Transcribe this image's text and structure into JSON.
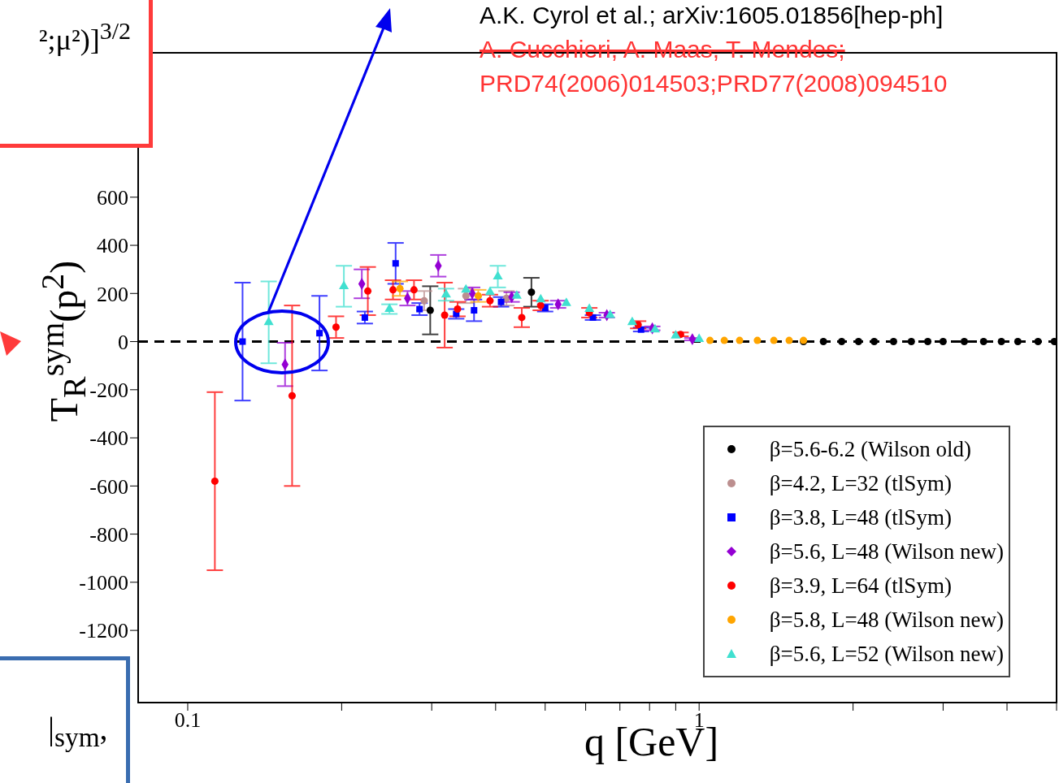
{
  "chart_data": {
    "type": "scatter",
    "xlabel": "q [GeV]",
    "ylabel": "T$_{R}$$^{sym}$(p$^{2}$)",
    "log": "x",
    "xlim": [
      0.08,
      5
    ],
    "ylim": [
      -1500,
      1200
    ],
    "xticks": [
      {
        "value": 0.1,
        "label": "0.1"
      },
      {
        "value": 0.2,
        "label": null
      },
      {
        "value": 0.3,
        "label": null
      },
      {
        "value": 0.4,
        "label": null
      },
      {
        "value": 0.5,
        "label": null
      },
      {
        "value": 0.6,
        "label": null
      },
      {
        "value": 0.7,
        "label": null
      },
      {
        "value": 0.8,
        "label": null
      },
      {
        "value": 0.9,
        "label": null
      },
      {
        "value": 1,
        "label": "1"
      },
      {
        "value": 2,
        "label": null
      },
      {
        "value": 3,
        "label": null
      },
      {
        "value": 4,
        "label": null
      },
      {
        "value": 5,
        "label": null
      }
    ],
    "yticks": [
      -1200,
      -1000,
      -800,
      -600,
      -400,
      -200,
      0,
      200,
      400,
      600
    ],
    "grid": false,
    "legend": "bottom right",
    "ref_lines": [
      {
        "axis": "y",
        "value": 0,
        "color": "#000000",
        "line_style": "dashed"
      }
    ],
    "annotations": [
      "A.K. Cyrol et al.; arXiv:1605.01856[hep-ph]",
      "A. Cucchieri, A. Maas, T. Mendes;",
      "PRD74(2006)014503;PRD77(2008)094510",
      "²;μ²)]$^{3/2}$",
      "|$_{sym}$,"
    ],
    "series": [
      {
        "name": "β=5.6-6.2 (Wilson old)",
        "color": "#000000",
        "marker": "circle",
        "x": [
          0.298,
          0.47,
          1.6,
          1.75,
          1.9,
          2.05,
          2.2,
          2.4,
          2.6,
          2.8,
          3.0,
          3.3,
          3.6,
          3.9,
          4.2,
          4.6,
          4.95
        ],
        "values": [
          130,
          205,
          0,
          0,
          0,
          0,
          0,
          0,
          0,
          0,
          0,
          0,
          0,
          0,
          0,
          0,
          0
        ],
        "errors": [
          100,
          60,
          null,
          null,
          null,
          null,
          null,
          null,
          null,
          null,
          null,
          null,
          null,
          null,
          null,
          null,
          null
        ]
      },
      {
        "name": "β=4.2, L=32 (tlSym)",
        "color": "#bc8f8f",
        "marker": "circle",
        "x": [
          0.29,
          0.35,
          0.42
        ],
        "values": [
          170,
          190,
          180
        ],
        "errors": [
          40,
          30,
          30
        ]
      },
      {
        "name": "β=3.8, L=48 (tlSym)",
        "color": "#0000ff",
        "marker": "square",
        "x": [
          0.128,
          0.181,
          0.222,
          0.255,
          0.284,
          0.335,
          0.363,
          0.41,
          0.5,
          0.62,
          0.77
        ],
        "values": [
          0,
          35,
          100,
          325,
          135,
          115,
          130,
          165,
          140,
          100,
          50
        ],
        "errors": [
          245,
          155,
          25,
          85,
          25,
          20,
          45,
          20,
          15,
          10,
          8
        ]
      },
      {
        "name": "β=5.6, L=48 (Wilson new)",
        "color": "#9400d3",
        "marker": "diamond",
        "x": [
          0.155,
          0.219,
          0.269,
          0.309,
          0.36,
          0.43,
          0.53,
          0.66,
          0.81,
          0.97
        ],
        "values": [
          -95,
          240,
          180,
          315,
          200,
          185,
          155,
          110,
          55,
          10
        ],
        "errors": [
          90,
          60,
          30,
          45,
          25,
          20,
          15,
          10,
          8,
          5
        ]
      },
      {
        "name": "β=3.9, L=64 (tlSym)",
        "color": "#ff0000",
        "marker": "circle",
        "x": [
          0.113,
          0.16,
          0.195,
          0.225,
          0.252,
          0.277,
          0.318,
          0.337,
          0.45,
          0.39,
          0.49,
          0.61,
          0.76,
          0.92
        ],
        "values": [
          -580,
          -225,
          60,
          210,
          215,
          215,
          110,
          135,
          100,
          170,
          150,
          120,
          70,
          30
        ],
        "errors": [
          370,
          375,
          45,
          100,
          40,
          40,
          135,
          30,
          40,
          25,
          20,
          20,
          15,
          8
        ]
      },
      {
        "name": "β=5.8, L=48 (Wilson new)",
        "color": "#ffa500",
        "marker": "circle",
        "x": [
          0.26,
          0.37,
          1.05,
          1.12,
          1.2,
          1.3,
          1.4,
          1.5,
          1.6
        ],
        "values": [
          220,
          190,
          5,
          5,
          5,
          5,
          5,
          5,
          5
        ],
        "errors": [
          30,
          25,
          null,
          null,
          null,
          null,
          null,
          null,
          null
        ]
      },
      {
        "name": "β=5.6, L=52 (Wilson new)",
        "color": "#40e0d0",
        "marker": "triangle",
        "x": [
          0.144,
          0.202,
          0.248,
          0.32,
          0.404,
          0.35,
          0.39,
          0.44,
          0.49,
          0.55,
          0.61,
          0.67,
          0.74,
          0.82,
          0.9,
          1.0
        ],
        "values": [
          80,
          230,
          135,
          195,
          270,
          215,
          205,
          190,
          175,
          160,
          135,
          110,
          80,
          50,
          25,
          10
        ],
        "errors": [
          170,
          85,
          20,
          25,
          45,
          null,
          null,
          null,
          null,
          null,
          null,
          null,
          null,
          null,
          null,
          null
        ]
      }
    ]
  }
}
